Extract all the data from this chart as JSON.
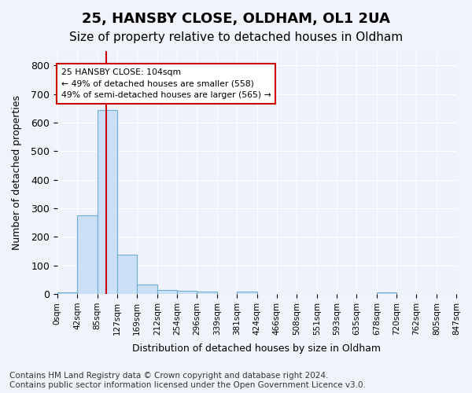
{
  "title1": "25, HANSBY CLOSE, OLDHAM, OL1 2UA",
  "title2": "Size of property relative to detached houses in Oldham",
  "xlabel": "Distribution of detached houses by size in Oldham",
  "ylabel": "Number of detached properties",
  "footnote": "Contains HM Land Registry data © Crown copyright and database right 2024.\nContains public sector information licensed under the Open Government Licence v3.0.",
  "bar_edges": [
    0,
    42,
    85,
    127,
    169,
    212,
    254,
    296,
    339,
    381,
    424,
    466,
    508,
    551,
    593,
    635,
    678,
    720,
    762,
    805,
    847
  ],
  "bar_heights": [
    5,
    275,
    645,
    138,
    32,
    15,
    11,
    7,
    0,
    7,
    0,
    0,
    0,
    0,
    0,
    0,
    5,
    0,
    0,
    0
  ],
  "bar_color": "#cce0f5",
  "bar_edge_color": "#6aaed6",
  "red_line_x": 104,
  "red_line_color": "#cc0000",
  "annotation_text": "25 HANSBY CLOSE: 104sqm\n← 49% of detached houses are smaller (558)\n49% of semi-detached houses are larger (565) →",
  "annotation_box_color": "#ffffff",
  "annotation_box_edge": "#cc0000",
  "ylim": [
    0,
    850
  ],
  "yticks": [
    0,
    100,
    200,
    300,
    400,
    500,
    600,
    700,
    800
  ],
  "tick_labels": [
    "0sqm",
    "42sqm",
    "85sqm",
    "127sqm",
    "169sqm",
    "212sqm",
    "254sqm",
    "296sqm",
    "339sqm",
    "381sqm",
    "424sqm",
    "466sqm",
    "508sqm",
    "551sqm",
    "593sqm",
    "635sqm",
    "678sqm",
    "720sqm",
    "762sqm",
    "805sqm",
    "847sqm"
  ],
  "bg_color": "#f0f4fa",
  "plot_bg_color": "#eef2fa",
  "grid_color": "#ffffff",
  "title1_fontsize": 13,
  "title2_fontsize": 11,
  "footnote_fontsize": 7.5
}
